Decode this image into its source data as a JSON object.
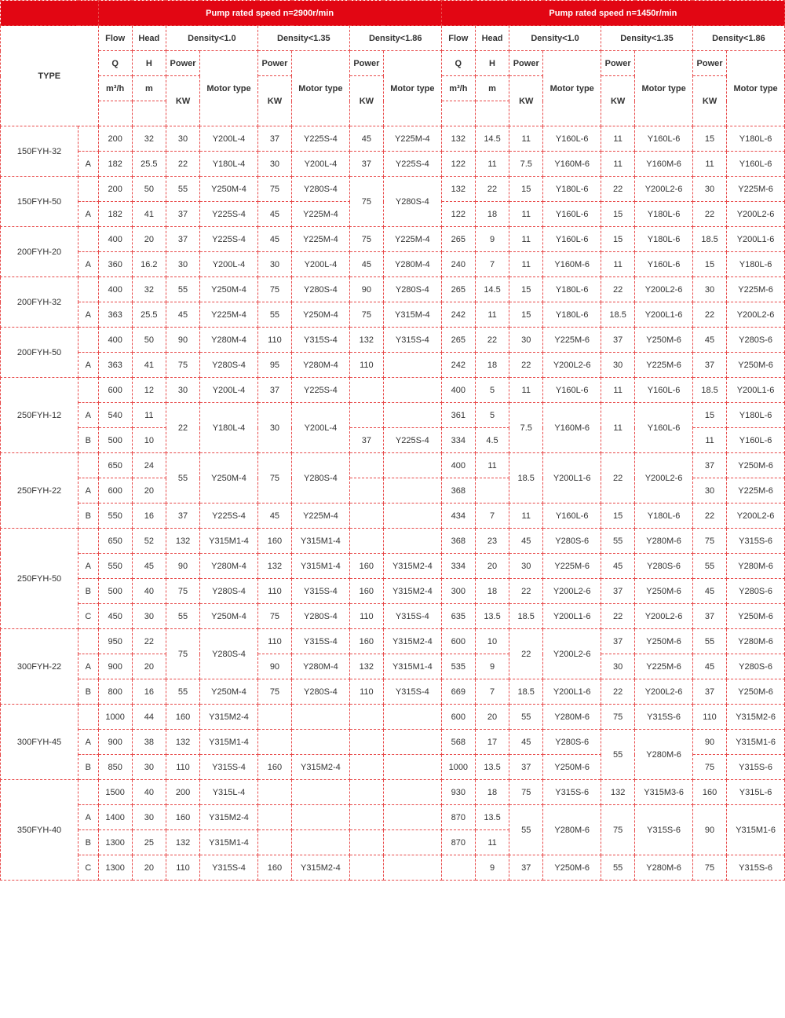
{
  "header": {
    "speed2900": "Pump rated speed n=2900r/min",
    "speed1450": "Pump rated speed n=1450r/min",
    "type": "TYPE",
    "flow": "Flow",
    "head": "Head",
    "density10": "Density<1.0",
    "density135": "Density<1.35",
    "density186": "Density<1.86",
    "Q": "Q",
    "Qunit": "m³/h",
    "H": "H",
    "Hunit": "m",
    "power": "Power",
    "KW": "KW",
    "motorType": "Motor type"
  },
  "rows": [
    {
      "type": "150FYH-32",
      "sub": "",
      "d": [
        "200",
        "32",
        "30",
        "Y200L-4",
        "37",
        "Y225S-4",
        "45",
        "Y225M-4",
        "132",
        "14.5",
        "11",
        "Y160L-6",
        "11",
        "Y160L-6",
        "15",
        "Y180L-6"
      ]
    },
    {
      "type": "",
      "sub": "A",
      "d": [
        "182",
        "25.5",
        "22",
        "Y180L-4",
        "30",
        "Y200L-4",
        "37",
        "Y225S-4",
        "122",
        "11",
        "7.5",
        "Y160M-6",
        "11",
        "Y160M-6",
        "11",
        "Y160L-6"
      ]
    },
    {
      "type": "150FYH-50",
      "sub": "",
      "d": [
        "200",
        "50",
        "55",
        "Y250M-4",
        "75",
        "Y280S-4",
        "",
        "",
        "132",
        "22",
        "15",
        "Y180L-6",
        "22",
        "Y200L2-6",
        "30",
        "Y225M-6"
      ],
      "merge75": true
    },
    {
      "type": "",
      "sub": "A",
      "d": [
        "182",
        "41",
        "37",
        "Y225S-4",
        "45",
        "Y225M-4",
        "",
        "",
        "122",
        "18",
        "11",
        "Y160L-6",
        "15",
        "Y180L-6",
        "22",
        "Y200L2-6"
      ]
    },
    {
      "type": "200FYH-20",
      "sub": "",
      "d": [
        "400",
        "20",
        "37",
        "Y225S-4",
        "45",
        "Y225M-4",
        "75",
        "Y225M-4",
        "265",
        "9",
        "11",
        "Y160L-6",
        "15",
        "Y180L-6",
        "18.5",
        "Y200L1-6"
      ]
    },
    {
      "type": "",
      "sub": "A",
      "d": [
        "360",
        "16.2",
        "30",
        "Y200L-4",
        "30",
        "Y200L-4",
        "45",
        "Y280M-4",
        "240",
        "7",
        "11",
        "Y160M-6",
        "11",
        "Y160L-6",
        "15",
        "Y180L-6"
      ]
    },
    {
      "type": "200FYH-32",
      "sub": "",
      "d": [
        "400",
        "32",
        "55",
        "Y250M-4",
        "75",
        "Y280S-4",
        "90",
        "Y280S-4",
        "265",
        "14.5",
        "15",
        "Y180L-6",
        "22",
        "Y200L2-6",
        "30",
        "Y225M-6"
      ]
    },
    {
      "type": "",
      "sub": "A",
      "d": [
        "363",
        "25.5",
        "45",
        "Y225M-4",
        "55",
        "Y250M-4",
        "75",
        "Y315M-4",
        "242",
        "11",
        "15",
        "Y180L-6",
        "18.5",
        "Y200L1-6",
        "22",
        "Y200L2-6"
      ]
    },
    {
      "type": "200FYH-50",
      "sub": "",
      "d": [
        "400",
        "50",
        "90",
        "Y280M-4",
        "110",
        "Y315S-4",
        "132",
        "Y315S-4",
        "265",
        "22",
        "30",
        "Y225M-6",
        "37",
        "Y250M-6",
        "45",
        "Y280S-6"
      ]
    },
    {
      "type": "",
      "sub": "A",
      "d": [
        "363",
        "41",
        "75",
        "Y280S-4",
        "95",
        "Y280M-4",
        "110",
        "",
        "242",
        "18",
        "22",
        "Y200L2-6",
        "30",
        "Y225M-6",
        "37",
        "Y250M-6"
      ]
    },
    {
      "type": "250FYH-12",
      "sub": "",
      "d": [
        "600",
        "12",
        "30",
        "Y200L-4",
        "37",
        "Y225S-4",
        "",
        "",
        "400",
        "5",
        "11",
        "Y160L-6",
        "11",
        "Y160L-6",
        "18.5",
        "Y200L1-6"
      ]
    },
    {
      "type": "",
      "sub": "A",
      "d": [
        "540",
        "11",
        "",
        "",
        "",
        "",
        "",
        "",
        "361",
        "5",
        "",
        "",
        "",
        "",
        "15",
        "Y180L-6"
      ],
      "m22": true
    },
    {
      "type": "",
      "sub": "B",
      "d": [
        "500",
        "10",
        "",
        "",
        "",
        "",
        "37",
        "Y225S-4",
        "334",
        "4.5",
        "",
        "",
        "",
        "",
        "11",
        "Y160L-6"
      ]
    },
    {
      "type": "250FYH-22",
      "sub": "",
      "d": [
        "650",
        "24",
        "",
        "",
        "",
        "",
        "",
        "",
        "400",
        "11",
        "",
        "",
        "",
        "",
        "37",
        "Y250M-6"
      ],
      "m55": true
    },
    {
      "type": "",
      "sub": "A",
      "d": [
        "600",
        "20",
        "",
        "",
        "",
        "",
        "",
        "",
        "368",
        "",
        "",
        "",
        "",
        "",
        "30",
        "Y225M-6"
      ]
    },
    {
      "type": "",
      "sub": "B",
      "d": [
        "550",
        "16",
        "37",
        "Y225S-4",
        "45",
        "Y225M-4",
        "",
        "",
        "434",
        "7",
        "11",
        "Y160L-6",
        "15",
        "Y180L-6",
        "22",
        "Y200L2-6"
      ]
    },
    {
      "type": "250FYH-50",
      "sub": "",
      "d": [
        "650",
        "52",
        "132",
        "Y315M1-4",
        "160",
        "Y315M1-4",
        "",
        "",
        "368",
        "23",
        "45",
        "Y280S-6",
        "55",
        "Y280M-6",
        "75",
        "Y315S-6"
      ]
    },
    {
      "type": "",
      "sub": "A",
      "d": [
        "550",
        "45",
        "90",
        "Y280M-4",
        "132",
        "Y315M1-4",
        "160",
        "Y315M2-4",
        "334",
        "20",
        "30",
        "Y225M-6",
        "45",
        "Y280S-6",
        "55",
        "Y280M-6"
      ]
    },
    {
      "type": "",
      "sub": "B",
      "d": [
        "500",
        "40",
        "75",
        "Y280S-4",
        "110",
        "Y315S-4",
        "160",
        "Y315M2-4",
        "300",
        "18",
        "22",
        "Y200L2-6",
        "37",
        "Y250M-6",
        "45",
        "Y280S-6"
      ]
    },
    {
      "type": "",
      "sub": "C",
      "d": [
        "450",
        "30",
        "55",
        "Y250M-4",
        "75",
        "Y280S-4",
        "110",
        "Y315S-4",
        "635",
        "13.5",
        "18.5",
        "Y200L1-6",
        "22",
        "Y200L2-6",
        "37",
        "Y250M-6"
      ]
    },
    {
      "type": "300FYH-22",
      "sub": "",
      "d": [
        "950",
        "22",
        "",
        "",
        "110",
        "Y315S-4",
        "160",
        "Y315M2-4",
        "600",
        "10",
        "",
        "",
        "37",
        "Y250M-6",
        "55",
        "Y280M-6"
      ],
      "m75b": true
    },
    {
      "type": "",
      "sub": "A",
      "d": [
        "900",
        "20",
        "",
        "",
        "90",
        "Y280M-4",
        "132",
        "Y315M1-4",
        "535",
        "9",
        "",
        "",
        "30",
        "Y225M-6",
        "45",
        "Y280S-6"
      ]
    },
    {
      "type": "",
      "sub": "B",
      "d": [
        "800",
        "16",
        "55",
        "Y250M-4",
        "75",
        "Y280S-4",
        "110",
        "Y315S-4",
        "669",
        "7",
        "18.5",
        "Y200L1-6",
        "22",
        "Y200L2-6",
        "37",
        "Y250M-6"
      ]
    },
    {
      "type": "300FYH-45",
      "sub": "",
      "d": [
        "1000",
        "44",
        "160",
        "Y315M2-4",
        "",
        "",
        "",
        "",
        "600",
        "20",
        "55",
        "Y280M-6",
        "75",
        "Y315S-6",
        "110",
        "Y315M2-6"
      ]
    },
    {
      "type": "",
      "sub": "A",
      "d": [
        "900",
        "38",
        "132",
        "Y315M1-4",
        "",
        "",
        "",
        "",
        "568",
        "17",
        "45",
        "Y280S-6",
        "",
        "",
        "90",
        "Y315M1-6"
      ],
      "m55b": true
    },
    {
      "type": "",
      "sub": "B",
      "d": [
        "850",
        "30",
        "110",
        "Y315S-4",
        "160",
        "Y315M2-4",
        "",
        "",
        "1000",
        "13.5",
        "37",
        "Y250M-6",
        "",
        "",
        "75",
        "Y315S-6"
      ]
    },
    {
      "type": "350FYH-40",
      "sub": "",
      "d": [
        "1500",
        "40",
        "200",
        "Y315L-4",
        "",
        "",
        "",
        "",
        "930",
        "18",
        "75",
        "Y315S-6",
        "132",
        "Y315M3-6",
        "160",
        "Y315L-6"
      ]
    },
    {
      "type": "",
      "sub": "A",
      "d": [
        "1400",
        "30",
        "160",
        "Y315M2-4",
        "",
        "",
        "",
        "",
        "870",
        "13.5",
        "",
        "",
        "",
        "",
        "",
        ""
      ],
      "m55c": true
    },
    {
      "type": "",
      "sub": "B",
      "d": [
        "1300",
        "25",
        "132",
        "Y315M1-4",
        "",
        "",
        "",
        "",
        "870",
        "11",
        "",
        "",
        "",
        "",
        "",
        ""
      ]
    },
    {
      "type": "",
      "sub": "C",
      "d": [
        "1300",
        "20",
        "110",
        "Y315S-4",
        "160",
        "Y315M2-4",
        "",
        "",
        "",
        "9",
        "37",
        "Y250M-6",
        "55",
        "Y280M-6",
        "75",
        "Y315S-6"
      ]
    }
  ]
}
